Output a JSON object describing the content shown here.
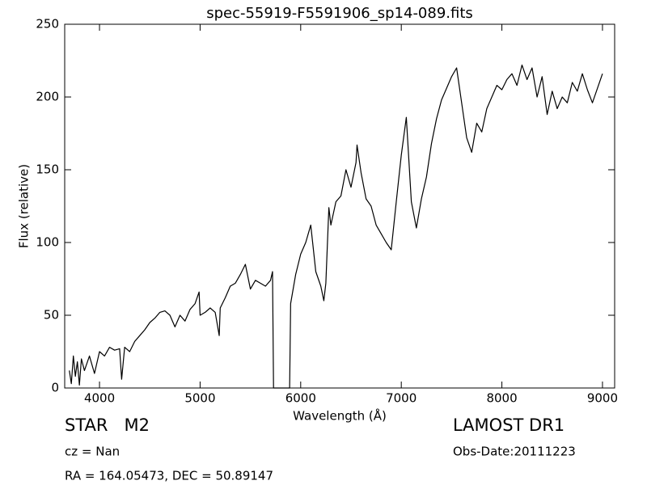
{
  "chart_data": {
    "type": "line",
    "title": "spec-55919-F5591906_sp14-089.fits",
    "x_label": "Wavelength (Å)",
    "y_label": "Flux (relative)",
    "annotations": [
      "STAR   M2",
      "cz = Nan",
      "RA = 164.05473, DEC = 50.89147",
      "LAMOST DR1",
      "Obs-Date:20111223"
    ],
    "color": "#000000",
    "xlim": [
      3654,
      9121
    ],
    "ylim": [
      0,
      250
    ],
    "xticks": [
      4000,
      5000,
      6000,
      7000,
      8000,
      9000
    ],
    "yticks": [
      0,
      50,
      100,
      150,
      200,
      250
    ],
    "grid": false,
    "x": [
      3700,
      3720,
      3740,
      3760,
      3780,
      3800,
      3820,
      3850,
      3900,
      3950,
      4000,
      4050,
      4100,
      4150,
      4200,
      4220,
      4250,
      4300,
      4350,
      4400,
      4450,
      4500,
      4550,
      4600,
      4650,
      4700,
      4750,
      4800,
      4850,
      4900,
      4950,
      4990,
      5000,
      5050,
      5100,
      5150,
      5190,
      5200,
      5250,
      5300,
      5350,
      5400,
      5450,
      5500,
      5550,
      5600,
      5650,
      5700,
      5720,
      5730,
      5890,
      5900,
      5950,
      6000,
      6050,
      6100,
      6150,
      6200,
      6230,
      6250,
      6280,
      6300,
      6350,
      6400,
      6450,
      6500,
      6550,
      6560,
      6600,
      6650,
      6700,
      6750,
      6800,
      6850,
      6900,
      6950,
      7000,
      7050,
      7100,
      7150,
      7200,
      7250,
      7300,
      7350,
      7400,
      7450,
      7500,
      7550,
      7600,
      7650,
      7700,
      7750,
      7800,
      7850,
      7900,
      7950,
      8000,
      8050,
      8100,
      8150,
      8200,
      8250,
      8300,
      8350,
      8400,
      8450,
      8500,
      8550,
      8600,
      8650,
      8700,
      8750,
      8800,
      8850,
      8900,
      8950,
      9000
    ],
    "values": [
      12,
      3,
      22,
      8,
      18,
      2,
      20,
      12,
      22,
      10,
      25,
      22,
      28,
      26,
      27,
      6,
      28,
      25,
      32,
      36,
      40,
      45,
      48,
      52,
      53,
      50,
      42,
      50,
      46,
      54,
      58,
      66,
      50,
      52,
      55,
      52,
      36,
      55,
      62,
      70,
      72,
      78,
      85,
      68,
      74,
      72,
      70,
      74,
      80,
      0,
      0,
      58,
      78,
      92,
      100,
      112,
      80,
      70,
      60,
      72,
      124,
      112,
      128,
      132,
      150,
      138,
      155,
      167,
      148,
      130,
      125,
      112,
      106,
      100,
      95,
      128,
      160,
      186,
      128,
      110,
      130,
      145,
      168,
      185,
      198,
      206,
      214,
      220,
      196,
      172,
      162,
      182,
      176,
      192,
      200,
      208,
      205,
      212,
      216,
      208,
      222,
      212,
      220,
      200,
      214,
      188,
      204,
      192,
      200,
      196,
      210,
      204,
      216,
      205,
      196,
      206,
      216
    ]
  }
}
